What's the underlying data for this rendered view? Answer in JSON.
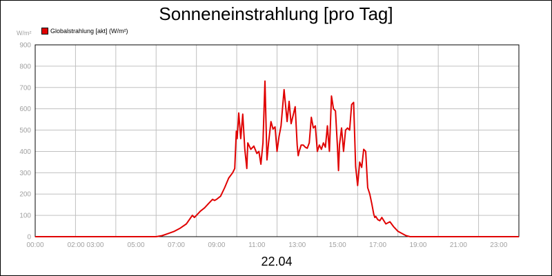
{
  "chart_data": {
    "type": "line",
    "title": "Sonneneinstrahlung [pro Tag]",
    "unit_label": "W/m²",
    "date_label": "22.04",
    "ylim": [
      0,
      900
    ],
    "y_ticks": [
      "0",
      "100",
      "200",
      "300",
      "400",
      "500",
      "600",
      "700",
      "800",
      "900"
    ],
    "xlim": [
      0,
      24
    ],
    "x_tick_labels": [
      "00:00",
      "02:00 03:00",
      "05:00",
      "07:00",
      "09:00",
      "11:00",
      "13:00",
      "15:00",
      "17:00",
      "19:00",
      "21:00",
      "23:00"
    ],
    "grid": true,
    "legend_position": "top-left",
    "colors": {
      "series": "#e00000",
      "grid": "#c0c0c0",
      "ticks": "#a0a0a0"
    },
    "series": [
      {
        "name": "Globalstrahlung [akt] (W/m²)",
        "x": [
          0,
          6,
          6.3,
          6.6,
          6.9,
          7.2,
          7.5,
          7.8,
          7.9,
          8.0,
          8.2,
          8.4,
          8.6,
          8.8,
          8.9,
          9.0,
          9.2,
          9.4,
          9.6,
          9.8,
          9.9,
          9.98,
          10.02,
          10.1,
          10.2,
          10.3,
          10.4,
          10.5,
          10.55,
          10.7,
          10.85,
          11.0,
          11.1,
          11.2,
          11.3,
          11.4,
          11.5,
          11.58,
          11.7,
          11.8,
          11.9,
          12.0,
          12.1,
          12.2,
          12.35,
          12.5,
          12.6,
          12.7,
          12.8,
          12.9,
          13.0,
          13.05,
          13.1,
          13.2,
          13.3,
          13.4,
          13.5,
          13.6,
          13.7,
          13.8,
          13.9,
          14.0,
          14.1,
          14.2,
          14.3,
          14.4,
          14.5,
          14.6,
          14.7,
          14.8,
          14.9,
          15.0,
          15.05,
          15.1,
          15.2,
          15.3,
          15.4,
          15.5,
          15.6,
          15.7,
          15.8,
          15.9,
          16.0,
          16.1,
          16.2,
          16.3,
          16.4,
          16.5,
          16.6,
          16.7,
          16.8,
          16.85,
          16.9,
          17.0,
          17.1,
          17.2,
          17.4,
          17.6,
          17.8,
          18.0,
          18.2,
          18.4,
          18.6,
          18.8,
          19.0,
          19.2,
          19.4,
          19.6,
          19.8,
          20.0,
          20.2,
          20.4,
          24
        ],
        "values": [
          0,
          0,
          5,
          15,
          25,
          40,
          60,
          100,
          90,
          100,
          120,
          135,
          155,
          175,
          170,
          175,
          190,
          230,
          275,
          300,
          320,
          495,
          460,
          580,
          460,
          575,
          410,
          320,
          440,
          410,
          425,
          390,
          400,
          340,
          440,
          730,
          360,
          440,
          540,
          505,
          515,
          400,
          470,
          520,
          690,
          540,
          635,
          530,
          570,
          610,
          430,
          380,
          400,
          430,
          430,
          420,
          415,
          440,
          560,
          510,
          520,
          400,
          430,
          410,
          440,
          420,
          520,
          400,
          660,
          600,
          590,
          420,
          310,
          430,
          510,
          400,
          500,
          510,
          500,
          620,
          630,
          330,
          240,
          350,
          325,
          410,
          400,
          230,
          200,
          155,
          105,
          90,
          95,
          80,
          75,
          90,
          60,
          70,
          45,
          25,
          15,
          5,
          0,
          0,
          0,
          0,
          0,
          0,
          0,
          0,
          0,
          0,
          0
        ]
      }
    ]
  }
}
